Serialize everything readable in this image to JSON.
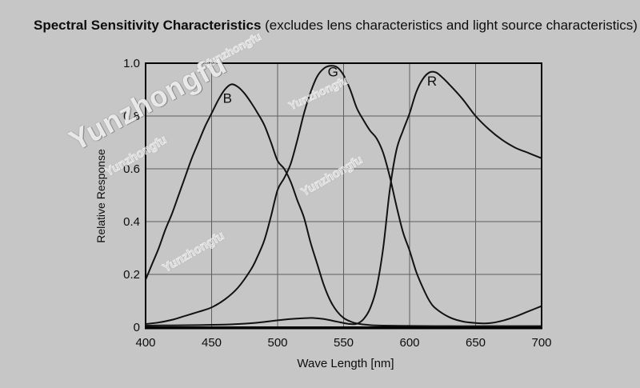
{
  "title": {
    "bold": "Spectral Sensitivity Characteristics",
    "rest": " (excludes lens characteristics and light source characteristics)"
  },
  "watermark": {
    "text": "Yunzhongfu"
  },
  "chart_data": {
    "type": "line",
    "title": "Spectral Sensitivity Characteristics (excludes lens characteristics and light source characteristics)",
    "xlabel": "Wave Length [nm]",
    "ylabel": "Relative Response",
    "xlim": [
      400,
      700
    ],
    "ylim": [
      0,
      1.0
    ],
    "grid": true,
    "x_ticks": [
      {
        "value": 400,
        "label": "400"
      },
      {
        "value": 450,
        "label": "450"
      },
      {
        "value": 500,
        "label": "500"
      },
      {
        "value": 550,
        "label": "550"
      },
      {
        "value": 600,
        "label": "600"
      },
      {
        "value": 650,
        "label": "650"
      },
      {
        "value": 700,
        "label": "700"
      }
    ],
    "y_ticks": [
      {
        "value": 1.0,
        "label": "1.0"
      },
      {
        "value": 0.8,
        "label": "0.8"
      },
      {
        "value": 0.6,
        "label": "0.6"
      },
      {
        "value": 0.4,
        "label": "0.4"
      },
      {
        "value": 0.2,
        "label": "0.2"
      },
      {
        "value": 0,
        "label": "0"
      }
    ],
    "line_color": "#121212",
    "series": [
      {
        "name": "B",
        "label": "B",
        "label_pos": {
          "x": 462,
          "y": 0.85
        },
        "points": [
          [
            400,
            0.18
          ],
          [
            405,
            0.24
          ],
          [
            410,
            0.3
          ],
          [
            415,
            0.37
          ],
          [
            420,
            0.43
          ],
          [
            425,
            0.5
          ],
          [
            430,
            0.57
          ],
          [
            435,
            0.64
          ],
          [
            440,
            0.7
          ],
          [
            445,
            0.76
          ],
          [
            450,
            0.81
          ],
          [
            455,
            0.86
          ],
          [
            460,
            0.9
          ],
          [
            465,
            0.92
          ],
          [
            470,
            0.91
          ],
          [
            475,
            0.885
          ],
          [
            480,
            0.85
          ],
          [
            485,
            0.81
          ],
          [
            490,
            0.765
          ],
          [
            495,
            0.7
          ],
          [
            500,
            0.63
          ],
          [
            505,
            0.6
          ],
          [
            510,
            0.55
          ],
          [
            515,
            0.48
          ],
          [
            520,
            0.415
          ],
          [
            525,
            0.32
          ],
          [
            530,
            0.24
          ],
          [
            535,
            0.16
          ],
          [
            540,
            0.1
          ],
          [
            545,
            0.06
          ],
          [
            550,
            0.035
          ],
          [
            555,
            0.022
          ],
          [
            560,
            0.014
          ],
          [
            570,
            0.008
          ],
          [
            580,
            0.006
          ],
          [
            600,
            0.005
          ],
          [
            630,
            0.004
          ],
          [
            660,
            0.004
          ],
          [
            700,
            0.004
          ]
        ]
      },
      {
        "name": "G",
        "label": "G",
        "label_pos": {
          "x": 542,
          "y": 0.95
        },
        "points": [
          [
            400,
            0.012
          ],
          [
            410,
            0.018
          ],
          [
            420,
            0.028
          ],
          [
            430,
            0.043
          ],
          [
            440,
            0.058
          ],
          [
            450,
            0.075
          ],
          [
            460,
            0.105
          ],
          [
            470,
            0.15
          ],
          [
            480,
            0.22
          ],
          [
            485,
            0.27
          ],
          [
            490,
            0.33
          ],
          [
            495,
            0.42
          ],
          [
            500,
            0.52
          ],
          [
            505,
            0.565
          ],
          [
            510,
            0.62
          ],
          [
            515,
            0.71
          ],
          [
            520,
            0.81
          ],
          [
            525,
            0.89
          ],
          [
            530,
            0.95
          ],
          [
            535,
            0.98
          ],
          [
            540,
            0.99
          ],
          [
            545,
            0.985
          ],
          [
            550,
            0.955
          ],
          [
            555,
            0.9
          ],
          [
            560,
            0.83
          ],
          [
            565,
            0.785
          ],
          [
            570,
            0.745
          ],
          [
            575,
            0.715
          ],
          [
            580,
            0.66
          ],
          [
            585,
            0.57
          ],
          [
            590,
            0.46
          ],
          [
            595,
            0.36
          ],
          [
            600,
            0.29
          ],
          [
            605,
            0.21
          ],
          [
            610,
            0.15
          ],
          [
            615,
            0.1
          ],
          [
            620,
            0.07
          ],
          [
            630,
            0.038
          ],
          [
            640,
            0.022
          ],
          [
            650,
            0.016
          ],
          [
            660,
            0.015
          ],
          [
            670,
            0.024
          ],
          [
            680,
            0.04
          ],
          [
            690,
            0.06
          ],
          [
            700,
            0.08
          ]
        ]
      },
      {
        "name": "R",
        "label": "R",
        "label_pos": {
          "x": 617,
          "y": 0.915
        },
        "points": [
          [
            400,
            0.006
          ],
          [
            420,
            0.007
          ],
          [
            440,
            0.008
          ],
          [
            460,
            0.01
          ],
          [
            470,
            0.012
          ],
          [
            480,
            0.015
          ],
          [
            490,
            0.02
          ],
          [
            500,
            0.026
          ],
          [
            510,
            0.031
          ],
          [
            520,
            0.034
          ],
          [
            527,
            0.035
          ],
          [
            535,
            0.031
          ],
          [
            545,
            0.021
          ],
          [
            550,
            0.016
          ],
          [
            555,
            0.012
          ],
          [
            560,
            0.013
          ],
          [
            565,
            0.03
          ],
          [
            570,
            0.07
          ],
          [
            575,
            0.15
          ],
          [
            580,
            0.3
          ],
          [
            585,
            0.52
          ],
          [
            590,
            0.67
          ],
          [
            595,
            0.745
          ],
          [
            600,
            0.81
          ],
          [
            605,
            0.89
          ],
          [
            610,
            0.94
          ],
          [
            615,
            0.965
          ],
          [
            620,
            0.965
          ],
          [
            625,
            0.945
          ],
          [
            630,
            0.92
          ],
          [
            640,
            0.865
          ],
          [
            650,
            0.8
          ],
          [
            660,
            0.75
          ],
          [
            670,
            0.71
          ],
          [
            680,
            0.68
          ],
          [
            690,
            0.66
          ],
          [
            700,
            0.64
          ]
        ]
      }
    ]
  }
}
